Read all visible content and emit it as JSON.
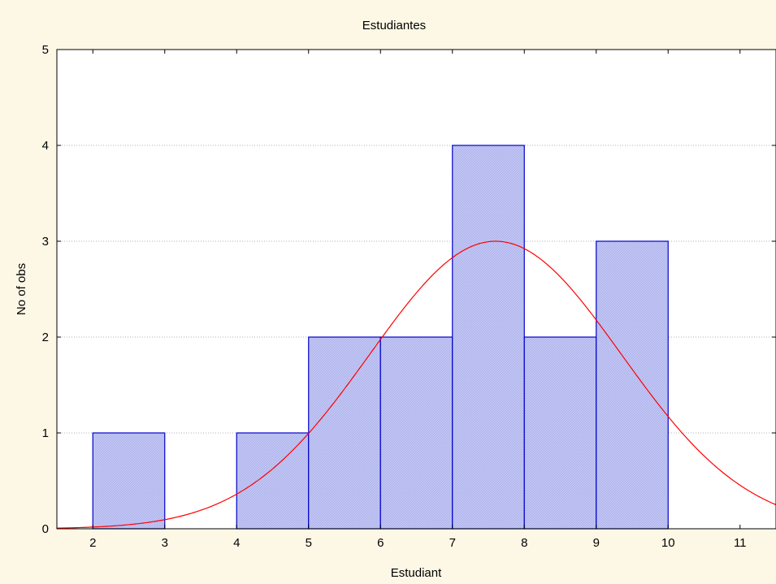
{
  "chart_data": {
    "type": "bar",
    "title": "Estudiantes",
    "xlabel": "Estudiant",
    "ylabel": "No of obs",
    "xlim": [
      1.5,
      11.5
    ],
    "ylim": [
      0,
      5
    ],
    "x_ticks": [
      2,
      3,
      4,
      5,
      6,
      7,
      8,
      9,
      10,
      11
    ],
    "y_ticks": [
      0,
      1,
      2,
      3,
      4,
      5
    ],
    "bins": [
      {
        "start": 2,
        "end": 3,
        "count": 1
      },
      {
        "start": 3,
        "end": 4,
        "count": 0
      },
      {
        "start": 4,
        "end": 5,
        "count": 1
      },
      {
        "start": 5,
        "end": 6,
        "count": 2
      },
      {
        "start": 6,
        "end": 7,
        "count": 2
      },
      {
        "start": 7,
        "end": 8,
        "count": 4
      },
      {
        "start": 8,
        "end": 9,
        "count": 2
      },
      {
        "start": 9,
        "end": 10,
        "count": 3
      }
    ],
    "normal_curve": {
      "mean": 7.6,
      "sd": 1.75,
      "peak": 3.0
    },
    "grid": true,
    "colors": {
      "bar_fill": "#c4c8f4",
      "bar_edge": "#0000cc",
      "curve": "#ff0000"
    }
  }
}
